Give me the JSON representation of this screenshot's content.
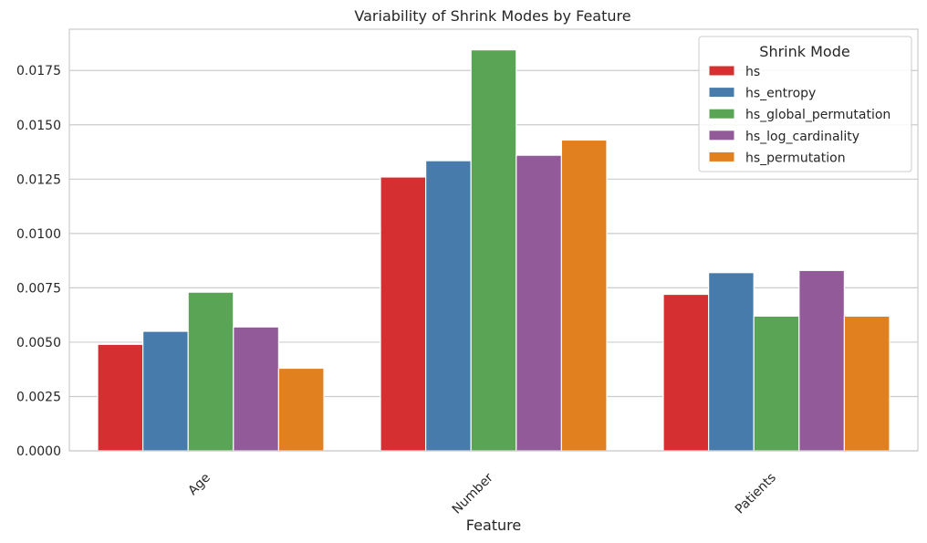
{
  "chart_data": {
    "type": "bar",
    "title": "Variability of Shrink Modes by Feature",
    "xlabel": "Feature",
    "ylabel": "",
    "categories": [
      "Age",
      "Number",
      "Patients"
    ],
    "ylim": [
      0,
      0.0194
    ],
    "yticks": [
      "0.0000",
      "0.0025",
      "0.0050",
      "0.0075",
      "0.0100",
      "0.0125",
      "0.0150",
      "0.0175"
    ],
    "grid": true,
    "legend": {
      "title": "Shrink Mode",
      "placement": "top-right"
    },
    "series": [
      {
        "name": "hs",
        "color": "#d62f32",
        "values": [
          0.0049,
          0.0126,
          0.0072
        ]
      },
      {
        "name": "hs_entropy",
        "color": "#467bab",
        "values": [
          0.0055,
          0.01335,
          0.0082
        ]
      },
      {
        "name": "hs_global_permutation",
        "color": "#5aa456",
        "values": [
          0.0073,
          0.01845,
          0.0062
        ]
      },
      {
        "name": "hs_log_cardinality",
        "color": "#925a99",
        "values": [
          0.0057,
          0.0136,
          0.0083
        ]
      },
      {
        "name": "hs_permutation",
        "color": "#e0801f",
        "values": [
          0.0038,
          0.0143,
          0.0062
        ]
      }
    ]
  }
}
